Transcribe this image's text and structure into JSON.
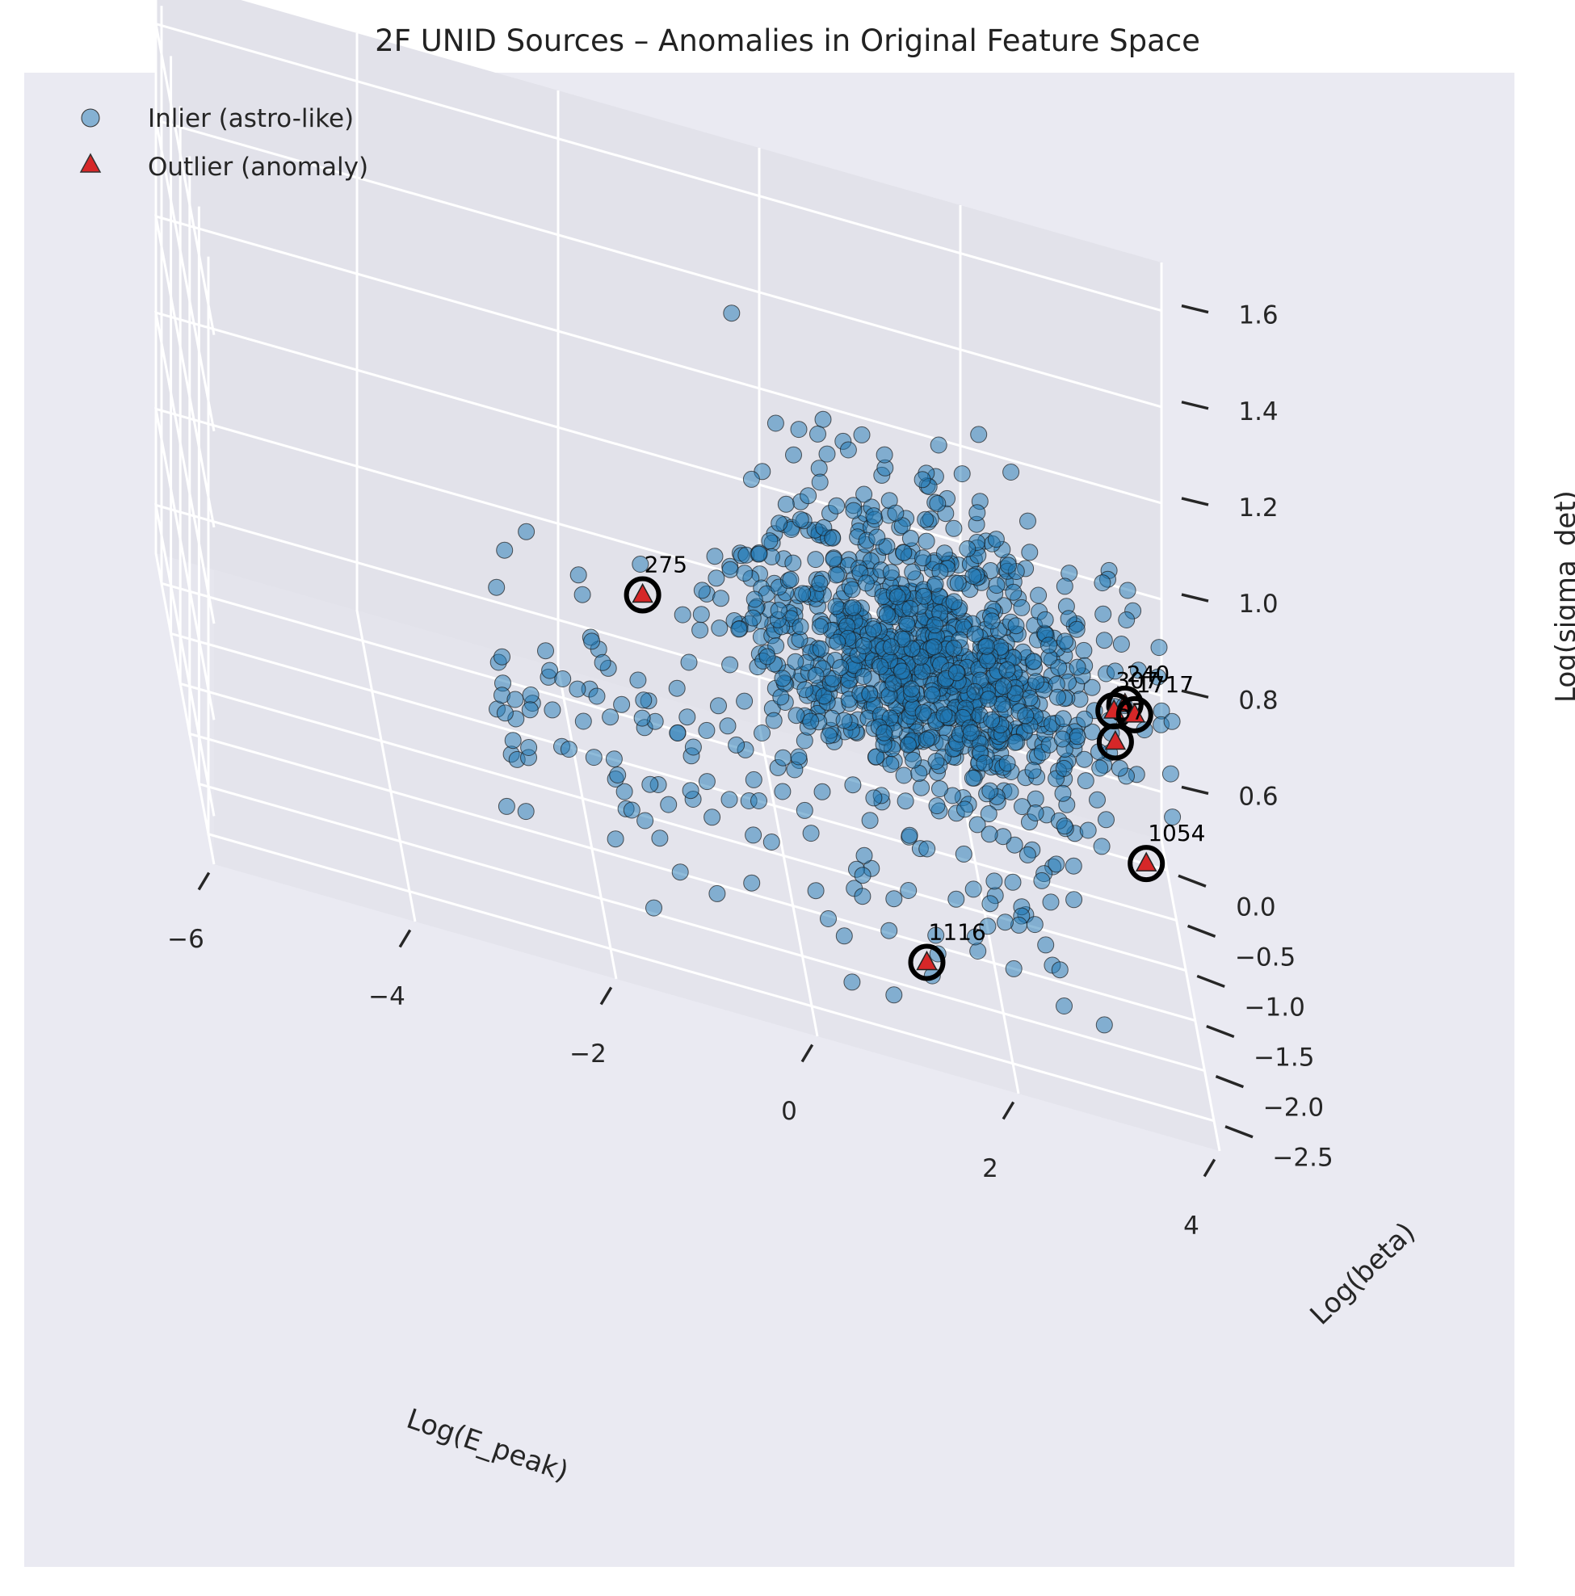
{
  "chart_data": {
    "type": "scatter3d",
    "title": "2F UNID Sources – Anomalies in Original Feature Space",
    "xlabel": "Log(E_peak)",
    "ylabel": "Log(beta)",
    "zlabel": "Log(sigma_det)",
    "xlim": [
      -6,
      4
    ],
    "ylim": [
      -2.8,
      0.3
    ],
    "zlim": [
      0.5,
      1.7
    ],
    "xticks": [
      "−6",
      "−4",
      "−2",
      "0",
      "2",
      "4"
    ],
    "yticks": [
      "0.0",
      "−0.5",
      "−1.0",
      "−1.5",
      "−2.0",
      "−2.5"
    ],
    "zticks": [
      "0.6",
      "0.8",
      "1.0",
      "1.2",
      "1.4",
      "1.6"
    ],
    "grid": true,
    "legend_position": "upper-left",
    "legend": [
      {
        "label": "Inlier (astro-like)",
        "marker": "circle",
        "color": "#1f77b4"
      },
      {
        "label": "Outlier (anomaly)",
        "marker": "triangle",
        "color": "#d62728"
      }
    ],
    "outliers": [
      {
        "id": "275",
        "x": -1.3,
        "y": -0.45,
        "z": 0.85
      },
      {
        "id": "240",
        "x": 3.6,
        "y": 0.1,
        "z": 0.8
      },
      {
        "id": "307",
        "x": 3.5,
        "y": 0.15,
        "z": 0.77
      },
      {
        "id": "1717",
        "x": 3.7,
        "y": 0.12,
        "z": 0.78
      },
      {
        "id": "57",
        "x": 3.5,
        "y": 0.08,
        "z": 0.72
      },
      {
        "id": "1054",
        "x": 3.7,
        "y": -0.5,
        "z": 0.6
      },
      {
        "id": "1116",
        "x": 1.2,
        "y": -2.2,
        "z": 0.6
      }
    ],
    "inlier_count": 1200
  }
}
